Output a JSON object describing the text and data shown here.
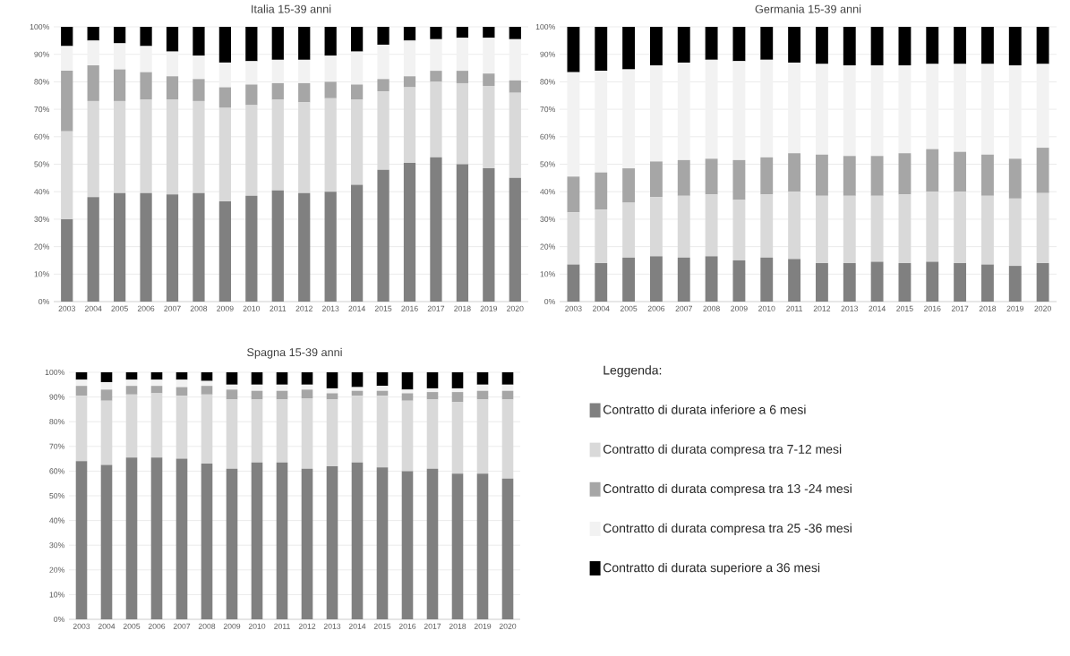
{
  "chart_data": [
    {
      "type": "bar",
      "stacked": true,
      "title": "Italia 15-39 anni",
      "grid": "y",
      "categories": [
        "2003",
        "2004",
        "2005",
        "2006",
        "2007",
        "2008",
        "2009",
        "2010",
        "2011",
        "2012",
        "2013",
        "2014",
        "2015",
        "2016",
        "2017",
        "2018",
        "2019",
        "2020"
      ],
      "ylim": [
        0,
        100
      ],
      "yticks": [
        {
          "value": 0,
          "label": "0%"
        },
        {
          "value": 10,
          "label": "10%"
        },
        {
          "value": 20,
          "label": "20%"
        },
        {
          "value": 30,
          "label": "30%"
        },
        {
          "value": 40,
          "label": "40%"
        },
        {
          "value": 50,
          "label": "50%"
        },
        {
          "value": 60,
          "label": "60%"
        },
        {
          "value": 70,
          "label": "70%"
        },
        {
          "value": 80,
          "label": "80%"
        },
        {
          "value": 90,
          "label": "90%"
        },
        {
          "value": 100,
          "label": "100%"
        }
      ],
      "series": [
        {
          "color": "#808080",
          "values": [
            30,
            38,
            39.5,
            39.5,
            39,
            39.5,
            36.5,
            38.5,
            40.5,
            39.5,
            40,
            42.5,
            48,
            50.5,
            52.5,
            50,
            48.5,
            45
          ]
        },
        {
          "color": "#d9d9d9",
          "values": [
            32,
            35,
            33.5,
            34,
            34.5,
            33.5,
            34,
            33,
            33,
            33,
            34,
            31,
            28.5,
            27.5,
            27.5,
            29.5,
            30,
            31
          ]
        },
        {
          "color": "#a6a6a6",
          "values": [
            22,
            13,
            11.5,
            10,
            8.5,
            8,
            7.5,
            7.5,
            6,
            7,
            6,
            5.5,
            4.5,
            4,
            4,
            4.5,
            4.5,
            4.5
          ]
        },
        {
          "color": "#f2f2f2",
          "values": [
            9,
            9,
            9.5,
            9.5,
            9,
            8.5,
            9,
            8.5,
            8.5,
            8.5,
            9.5,
            12,
            12.5,
            13,
            11.5,
            12,
            13,
            15
          ]
        },
        {
          "color": "#000000",
          "values": [
            7,
            5,
            6,
            7,
            9,
            10.5,
            13,
            12.5,
            12,
            12,
            10.5,
            9,
            6.5,
            5,
            4.5,
            4,
            4,
            4.5
          ]
        }
      ]
    },
    {
      "type": "bar",
      "stacked": true,
      "title": "Germania 15-39 anni",
      "grid": "y",
      "categories": [
        "2003",
        "2004",
        "2005",
        "2006",
        "2007",
        "2008",
        "2009",
        "2010",
        "2011",
        "2012",
        "2013",
        "2014",
        "2015",
        "2016",
        "2017",
        "2018",
        "2019",
        "2020"
      ],
      "ylim": [
        0,
        100
      ],
      "yticks": [
        {
          "value": 0,
          "label": "0%"
        },
        {
          "value": 10,
          "label": "10%"
        },
        {
          "value": 20,
          "label": "20%"
        },
        {
          "value": 30,
          "label": "30%"
        },
        {
          "value": 40,
          "label": "40%"
        },
        {
          "value": 50,
          "label": "50%"
        },
        {
          "value": 60,
          "label": "60%"
        },
        {
          "value": 70,
          "label": "70%"
        },
        {
          "value": 80,
          "label": "80%"
        },
        {
          "value": 90,
          "label": "90%"
        },
        {
          "value": 100,
          "label": "100%"
        }
      ],
      "series": [
        {
          "color": "#808080",
          "values": [
            13.5,
            14,
            16,
            16.5,
            16,
            16.5,
            15,
            16,
            15.5,
            14,
            14,
            14.5,
            14,
            14.5,
            14,
            13.5,
            13,
            14
          ]
        },
        {
          "color": "#d9d9d9",
          "values": [
            19,
            19.5,
            20,
            21.5,
            22.5,
            22.5,
            22,
            23,
            24.5,
            24.5,
            24.5,
            24,
            25,
            25.5,
            26,
            25,
            24.5,
            25.5
          ]
        },
        {
          "color": "#a6a6a6",
          "values": [
            13,
            13.5,
            12.5,
            13,
            13,
            13,
            14.5,
            13.5,
            14,
            15,
            14.5,
            14.5,
            15,
            15.5,
            14.5,
            15,
            14.5,
            16.5
          ]
        },
        {
          "color": "#f2f2f2",
          "values": [
            38,
            37,
            36,
            35,
            35.5,
            36,
            36,
            35.5,
            33,
            33,
            33,
            33,
            32,
            31,
            32,
            33,
            34,
            30.5
          ]
        },
        {
          "color": "#000000",
          "values": [
            16.5,
            16,
            15.5,
            14,
            13,
            12,
            12.5,
            12,
            13,
            13.5,
            14,
            14,
            14,
            13.5,
            13.5,
            13.5,
            14,
            13.5
          ]
        }
      ]
    },
    {
      "type": "bar",
      "stacked": true,
      "title": "Spagna 15-39 anni",
      "grid": "y",
      "legend": "right",
      "legend_title": "Leggenda:",
      "categories": [
        "2003",
        "2004",
        "2005",
        "2006",
        "2007",
        "2008",
        "2009",
        "2010",
        "2011",
        "2012",
        "2013",
        "2014",
        "2015",
        "2016",
        "2017",
        "2018",
        "2019",
        "2020"
      ],
      "ylim": [
        0,
        100
      ],
      "yticks": [
        {
          "value": 0,
          "label": "0%"
        },
        {
          "value": 10,
          "label": "10%"
        },
        {
          "value": 20,
          "label": "20%"
        },
        {
          "value": 30,
          "label": "30%"
        },
        {
          "value": 40,
          "label": "40%"
        },
        {
          "value": 50,
          "label": "50%"
        },
        {
          "value": 60,
          "label": "60%"
        },
        {
          "value": 70,
          "label": "70%"
        },
        {
          "value": 80,
          "label": "80%"
        },
        {
          "value": 90,
          "label": "90%"
        },
        {
          "value": 100,
          "label": "100%"
        }
      ],
      "series": [
        {
          "name": "Contratto di durata inferiore a 6 mesi",
          "color": "#808080",
          "values": [
            64,
            62.5,
            65.5,
            65.5,
            65,
            63,
            61,
            63.5,
            63.5,
            61,
            62,
            63.5,
            61.5,
            60,
            61,
            59,
            59,
            57
          ]
        },
        {
          "name": "Contratto di durata compresa tra 7-12 mesi",
          "color": "#d9d9d9",
          "values": [
            26.5,
            26,
            25.5,
            26,
            25.5,
            28,
            28,
            25.5,
            25.5,
            28.5,
            27,
            27,
            29,
            28.5,
            28,
            29,
            30,
            32
          ]
        },
        {
          "name": "Contratto di durata compresa tra 13 -24 mesi",
          "color": "#a6a6a6",
          "values": [
            4,
            4.5,
            3.5,
            3,
            3.5,
            3.5,
            4,
            3.5,
            3.5,
            3.5,
            2.5,
            2,
            2,
            3,
            3,
            4,
            3.5,
            3.5
          ]
        },
        {
          "name": "Contratto di durata compresa tra 25 -36 mesi",
          "color": "#f2f2f2",
          "values": [
            2.5,
            3,
            2.5,
            2.5,
            3,
            2,
            2,
            2.5,
            2.5,
            2,
            2,
            1.5,
            2,
            1.5,
            1.5,
            1.5,
            2.5,
            2.5
          ]
        },
        {
          "name": "Contratto di durata superiore a 36 mesi",
          "color": "#000000",
          "values": [
            3,
            4,
            3,
            3,
            3,
            3.5,
            5,
            5,
            5,
            5,
            6.5,
            6,
            5.5,
            7,
            6.5,
            6.5,
            5,
            5
          ]
        }
      ]
    }
  ]
}
